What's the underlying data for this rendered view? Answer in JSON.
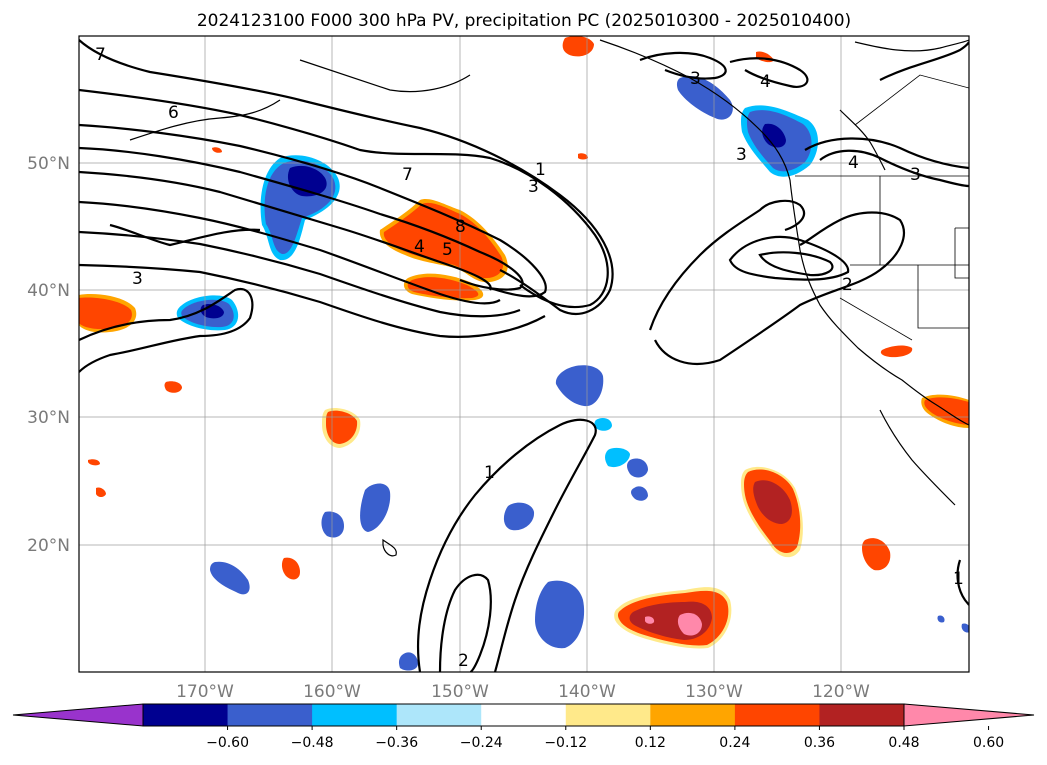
{
  "title": "2024123100 F000 300 hPa PV, precipitation PC (2025010300 - 2025010400)",
  "lat_labels": [
    "50°N",
    "40°N",
    "30°N",
    "20°N"
  ],
  "lon_labels": [
    "170°W",
    "160°W",
    "150°W",
    "140°W",
    "130°W",
    "120°W"
  ],
  "colorbar": {
    "ticks": [
      "−0.60",
      "−0.48",
      "−0.36",
      "−0.24",
      "−0.12",
      "0.12",
      "0.24",
      "0.36",
      "0.48",
      "0.60"
    ],
    "colors": [
      "#9933cc",
      "#000090",
      "#3a5fcd",
      "#00bfff",
      "#ade6fa",
      "#ffffff",
      "#ffe98a",
      "#ffa500",
      "#ff4500",
      "#b22222",
      "#ff88aa"
    ]
  },
  "contour_labels": [
    "7",
    "6",
    "7",
    "1",
    "3",
    "8",
    "4",
    "5",
    "3",
    "4",
    "3",
    "3",
    "4",
    "3",
    "2",
    "1",
    "2",
    "1"
  ],
  "colors": {
    "neg_dark": "#000090",
    "neg_mid": "#3a5fcd",
    "neg_light": "#00bfff",
    "pos_light": "#ffa500",
    "pos_mid": "#ff4500",
    "pos_dark": "#b22222",
    "pos_max": "#ff88aa"
  }
}
